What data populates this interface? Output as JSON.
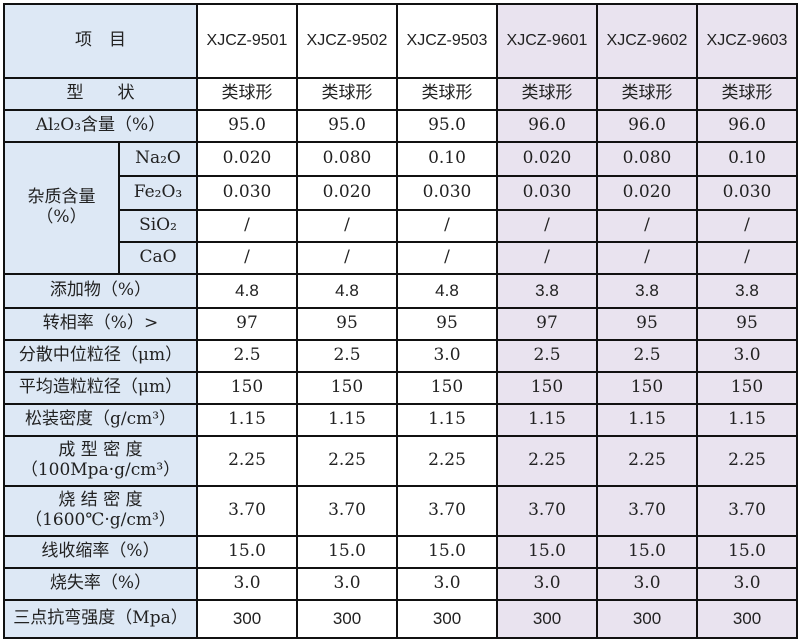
{
  "colors": {
    "label_bg": "#dde8f5",
    "group2_bg": "#e9e3ef",
    "border": "#111111"
  },
  "header": {
    "item": "项　目",
    "products": [
      "XJCZ-9501",
      "XJCZ-9502",
      "XJCZ-9503",
      "XJCZ-9601",
      "XJCZ-9602",
      "XJCZ-9603"
    ]
  },
  "rows": [
    {
      "label": "型　　状",
      "values": [
        "类球形",
        "类球形",
        "类球形",
        "类球形",
        "类球形",
        "类球形"
      ]
    },
    {
      "label": "Al₂O₃含量（%）",
      "values": [
        "95.0",
        "95.0",
        "95.0",
        "96.0",
        "96.0",
        "96.0"
      ]
    },
    {
      "group": "杂质含量（%）",
      "label": "Na₂O",
      "values": [
        "0.020",
        "0.080",
        "0.10",
        "0.020",
        "0.080",
        "0.10"
      ]
    },
    {
      "label": "Fe₂O₃",
      "values": [
        "0.030",
        "0.020",
        "0.030",
        "0.030",
        "0.020",
        "0.030"
      ]
    },
    {
      "label": "SiO₂",
      "values": [
        "/",
        "/",
        "/",
        "/",
        "/",
        "/"
      ]
    },
    {
      "label": "CaO",
      "values": [
        "/",
        "/",
        "/",
        "/",
        "/",
        "/"
      ]
    },
    {
      "label": "添加物（%）",
      "values": [
        "4.8",
        "4.8",
        "4.8",
        "3.8",
        "3.8",
        "3.8"
      ]
    },
    {
      "label": "转相率（%）>",
      "values": [
        "97",
        "95",
        "95",
        "97",
        "95",
        "95"
      ]
    },
    {
      "label": "分散中位粒径（μm）",
      "values": [
        "2.5",
        "2.5",
        "3.0",
        "2.5",
        "2.5",
        "3.0"
      ]
    },
    {
      "label": "平均造粒粒径（μm）",
      "values": [
        "150",
        "150",
        "150",
        "150",
        "150",
        "150"
      ]
    },
    {
      "label": "松装密度（g/cm³）",
      "values": [
        "1.15",
        "1.15",
        "1.15",
        "1.15",
        "1.15",
        "1.15"
      ]
    },
    {
      "label": "成 型 密 度（100Mpa·g/cm³）",
      "values": [
        "2.25",
        "2.25",
        "2.25",
        "2.25",
        "2.25",
        "2.25"
      ]
    },
    {
      "label": "烧 结 密 度（1600℃·g/cm³）",
      "values": [
        "3.70",
        "3.70",
        "3.70",
        "3.70",
        "3.70",
        "3.70"
      ]
    },
    {
      "label": "线收缩率（%）",
      "values": [
        "15.0",
        "15.0",
        "15.0",
        "15.0",
        "15.0",
        "15.0"
      ]
    },
    {
      "label": "烧失率（%）",
      "values": [
        "3.0",
        "3.0",
        "3.0",
        "3.0",
        "3.0",
        "3.0"
      ]
    },
    {
      "label": "三点抗弯强度（Mpa）",
      "values": [
        "300",
        "300",
        "300",
        "300",
        "300",
        "300"
      ]
    }
  ]
}
